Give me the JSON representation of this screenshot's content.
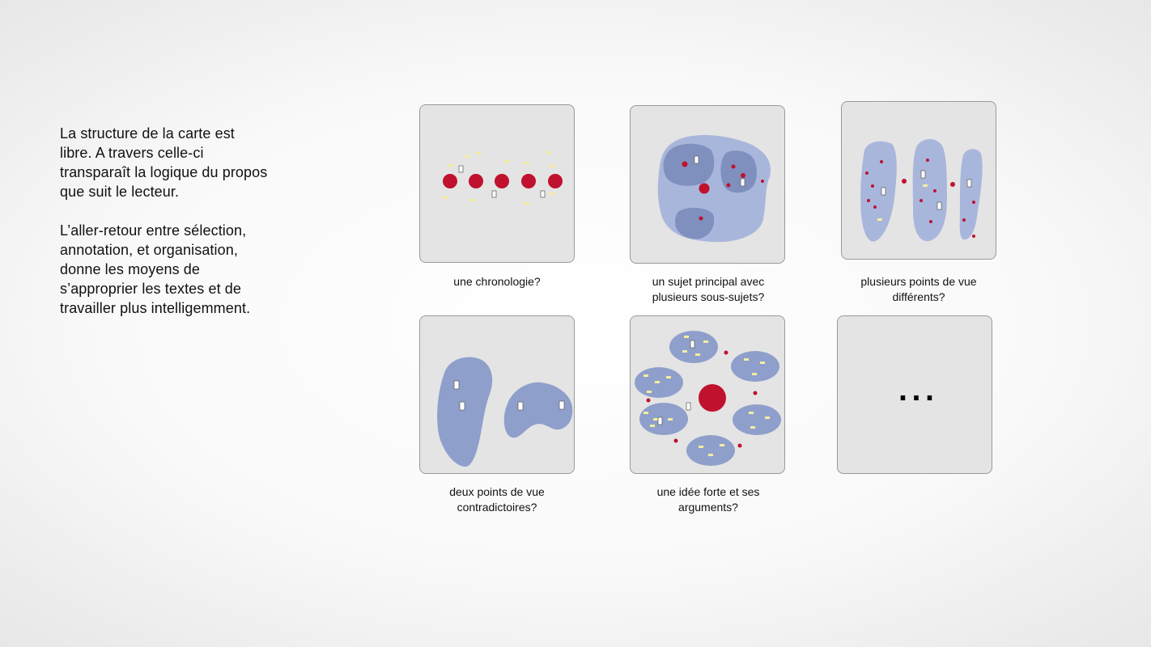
{
  "intro": {
    "paragraph1_lines": [
      "La structure de la carte est",
      "libre. A travers celle-ci",
      "transparaît la logique du propos",
      "que suit le lecteur."
    ],
    "paragraph2_lines": [
      "L’aller-retour entre sélection,",
      "annotation, et organisation,",
      "donne les moyens de",
      "s’approprier les textes et de",
      "travailler plus intelligemment."
    ]
  },
  "tiles": [
    {
      "caption_lines": [
        "une chronologie?"
      ]
    },
    {
      "caption_lines": [
        "un sujet principal avec",
        "plusieurs sous-sujets?"
      ]
    },
    {
      "caption_lines": [
        "plusieurs points de vue",
        "différents?"
      ]
    },
    {
      "caption_lines": [
        "deux points de vue",
        "contradictoires?"
      ]
    },
    {
      "caption_lines": [
        "une idée forte et ses",
        "arguments?"
      ]
    },
    {
      "caption_lines": [],
      "symbol": "..."
    }
  ],
  "colors": {
    "tile_background": "#e4e4e4",
    "region_blue": "#8f9fcb",
    "idea_red": "#c0112e",
    "note_yellow": "#f4eda0"
  }
}
